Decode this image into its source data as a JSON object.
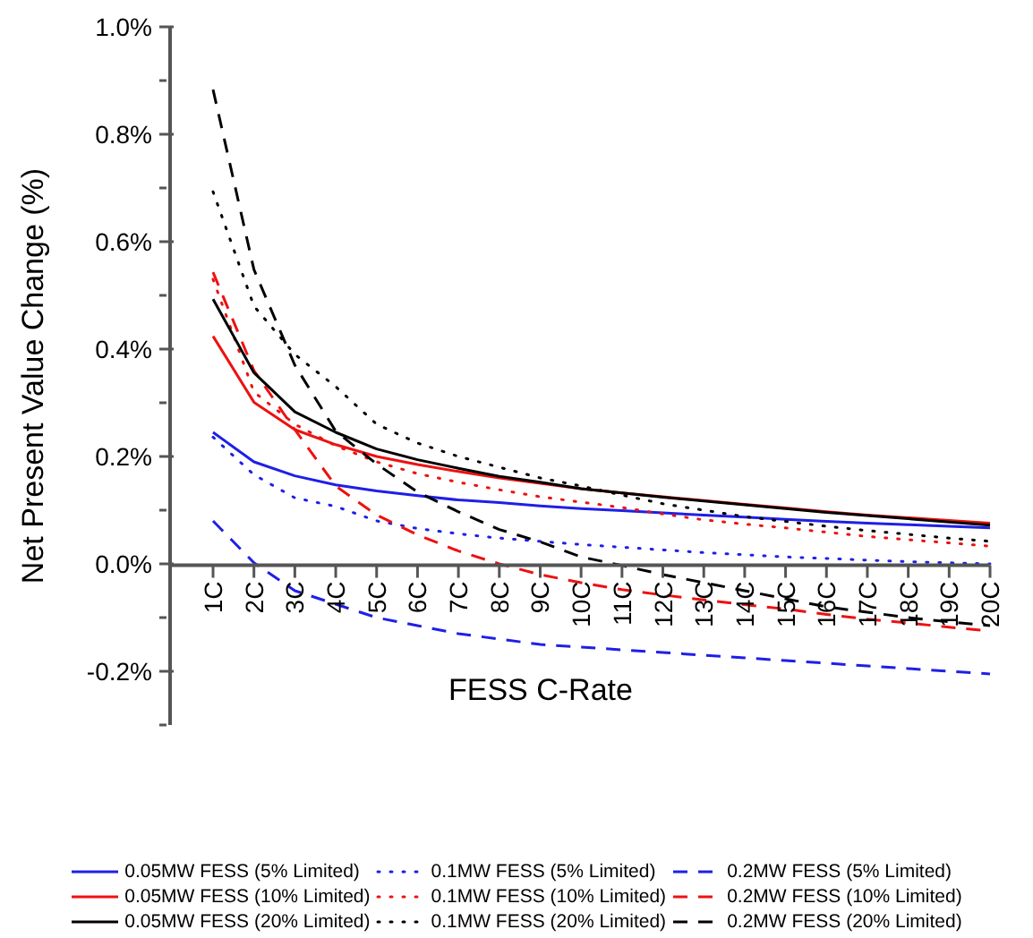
{
  "chart_data": {
    "type": "line",
    "xlabel": "FESS C-Rate",
    "ylabel": "Net Present Value Change (%)",
    "categories": [
      "1C",
      "2C",
      "3C",
      "4C",
      "5C",
      "6C",
      "7C",
      "8C",
      "9C",
      "10C",
      "11C",
      "12C",
      "13C",
      "14C",
      "15C",
      "16C",
      "17C",
      "18C",
      "19C",
      "20C"
    ],
    "ylim": [
      -0.3,
      1.0
    ],
    "yticks": [
      {
        "value": -0.3,
        "label": null
      },
      {
        "value": -0.2,
        "label": "-0.2%"
      },
      {
        "value": -0.1,
        "label": null
      },
      {
        "value": 0.0,
        "label": "0.0%"
      },
      {
        "value": 0.1,
        "label": null
      },
      {
        "value": 0.2,
        "label": "0.2%"
      },
      {
        "value": 0.3,
        "label": null
      },
      {
        "value": 0.4,
        "label": "0.4%"
      },
      {
        "value": 0.5,
        "label": null
      },
      {
        "value": 0.6,
        "label": "0.6%"
      },
      {
        "value": 0.7,
        "label": null
      },
      {
        "value": 0.8,
        "label": "0.8%"
      },
      {
        "value": 0.9,
        "label": null
      },
      {
        "value": 1.0,
        "label": "1.0%"
      }
    ],
    "grid": false,
    "legend": "bottom",
    "marker": "none",
    "series": [
      {
        "name": "0.05MW FESS (5% Limited)",
        "color": "#1f1fe6",
        "line_style": "solid",
        "values": [
          0.245,
          0.19,
          0.164,
          0.147,
          0.136,
          0.127,
          0.119,
          0.114,
          0.108,
          0.103,
          0.099,
          0.095,
          0.091,
          0.087,
          0.083,
          0.079,
          0.076,
          0.073,
          0.07,
          0.067
        ]
      },
      {
        "name": "0.1MW FESS (5% Limited)",
        "color": "#1f1fe6",
        "line_style": "dotted",
        "values": [
          0.236,
          0.166,
          0.123,
          0.107,
          0.08,
          0.066,
          0.056,
          0.048,
          0.042,
          0.036,
          0.031,
          0.026,
          0.021,
          0.017,
          0.013,
          0.01,
          0.007,
          0.004,
          0.002,
          0.0
        ]
      },
      {
        "name": "0.2MW FESS (5% Limited)",
        "color": "#1f1fe6",
        "line_style": "dashed",
        "values": [
          0.08,
          0.002,
          -0.05,
          -0.075,
          -0.1,
          -0.115,
          -0.13,
          -0.14,
          -0.15,
          -0.155,
          -0.16,
          -0.165,
          -0.17,
          -0.175,
          -0.18,
          -0.185,
          -0.19,
          -0.195,
          -0.2,
          -0.205
        ]
      },
      {
        "name": "0.05MW FESS (10% Limited)",
        "color": "#ee1111",
        "line_style": "solid",
        "values": [
          0.424,
          0.301,
          0.25,
          0.222,
          0.2,
          0.185,
          0.172,
          0.16,
          0.15,
          0.14,
          0.132,
          0.125,
          0.118,
          0.111,
          0.104,
          0.097,
          0.091,
          0.086,
          0.081,
          0.076
        ]
      },
      {
        "name": "0.1MW FESS (10% Limited)",
        "color": "#ee1111",
        "line_style": "dotted",
        "values": [
          0.53,
          0.32,
          0.26,
          0.22,
          0.19,
          0.168,
          0.152,
          0.138,
          0.125,
          0.115,
          0.105,
          0.093,
          0.082,
          0.074,
          0.067,
          0.059,
          0.051,
          0.045,
          0.039,
          0.033
        ]
      },
      {
        "name": "0.2MW FESS (10% Limited)",
        "color": "#ee1111",
        "line_style": "dashed",
        "values": [
          0.543,
          0.36,
          0.25,
          0.145,
          0.091,
          0.054,
          0.024,
          0.0,
          -0.02,
          -0.035,
          -0.048,
          -0.058,
          -0.067,
          -0.076,
          -0.084,
          -0.094,
          -0.103,
          -0.11,
          -0.118,
          -0.125
        ]
      },
      {
        "name": "0.05MW FESS (20% Limited)",
        "color": "#000000",
        "line_style": "solid",
        "values": [
          0.493,
          0.356,
          0.283,
          0.245,
          0.214,
          0.194,
          0.178,
          0.163,
          0.152,
          0.14,
          0.132,
          0.124,
          0.117,
          0.11,
          0.103,
          0.096,
          0.09,
          0.084,
          0.078,
          0.072
        ]
      },
      {
        "name": "0.1MW FESS (20% Limited)",
        "color": "#000000",
        "line_style": "dotted",
        "values": [
          0.693,
          0.48,
          0.39,
          0.33,
          0.26,
          0.225,
          0.2,
          0.18,
          0.16,
          0.145,
          0.128,
          0.112,
          0.1,
          0.088,
          0.079,
          0.07,
          0.062,
          0.055,
          0.048,
          0.042
        ]
      },
      {
        "name": "0.2MW FESS (20% Limited)",
        "color": "#000000",
        "line_style": "dashed",
        "values": [
          0.883,
          0.548,
          0.37,
          0.247,
          0.186,
          0.134,
          0.097,
          0.064,
          0.041,
          0.013,
          -0.003,
          -0.02,
          -0.035,
          -0.05,
          -0.065,
          -0.08,
          -0.09,
          -0.1,
          -0.108,
          -0.115
        ]
      }
    ]
  }
}
